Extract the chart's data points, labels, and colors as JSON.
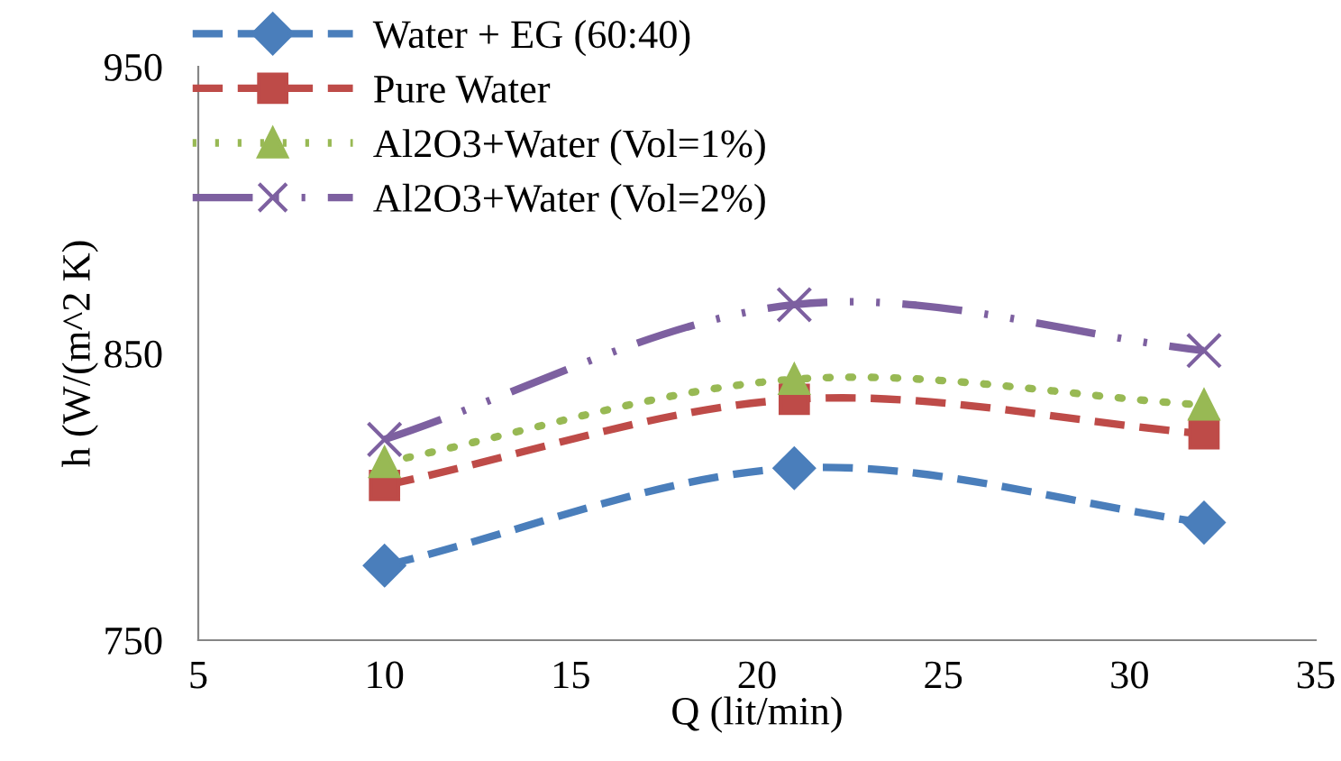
{
  "chart_data": {
    "type": "line",
    "xlabel": "Q (lit/min)",
    "ylabel": "h (W/(m^2 K)",
    "x": [
      10,
      21,
      32
    ],
    "xlim": [
      5,
      35
    ],
    "xticks": [
      5,
      10,
      15,
      20,
      25,
      30,
      35
    ],
    "ylim": [
      750,
      950
    ],
    "yticks": [
      750,
      850,
      950
    ],
    "grid": false,
    "legend": "top left",
    "series": [
      {
        "name": "Water + EG (60:40)",
        "color": "#4a7ebb",
        "values": [
          776,
          810,
          791
        ],
        "marker": "diamond",
        "line_style": "dashed"
      },
      {
        "name": "Pure Water",
        "color": "#be4b48",
        "values": [
          804,
          834,
          822
        ],
        "marker": "square",
        "line_style": "dashed"
      },
      {
        "name": "Al2O3+Water (Vol=1%)",
        "color": "#98b954",
        "values": [
          812,
          841,
          832
        ],
        "marker": "triangle",
        "line_style": "dotted"
      },
      {
        "name": "Al2O3+Water (Vol=2%)",
        "color": "#7d60a0",
        "values": [
          820,
          867,
          851
        ],
        "marker": "cross",
        "line_style": "dashdot"
      }
    ]
  }
}
